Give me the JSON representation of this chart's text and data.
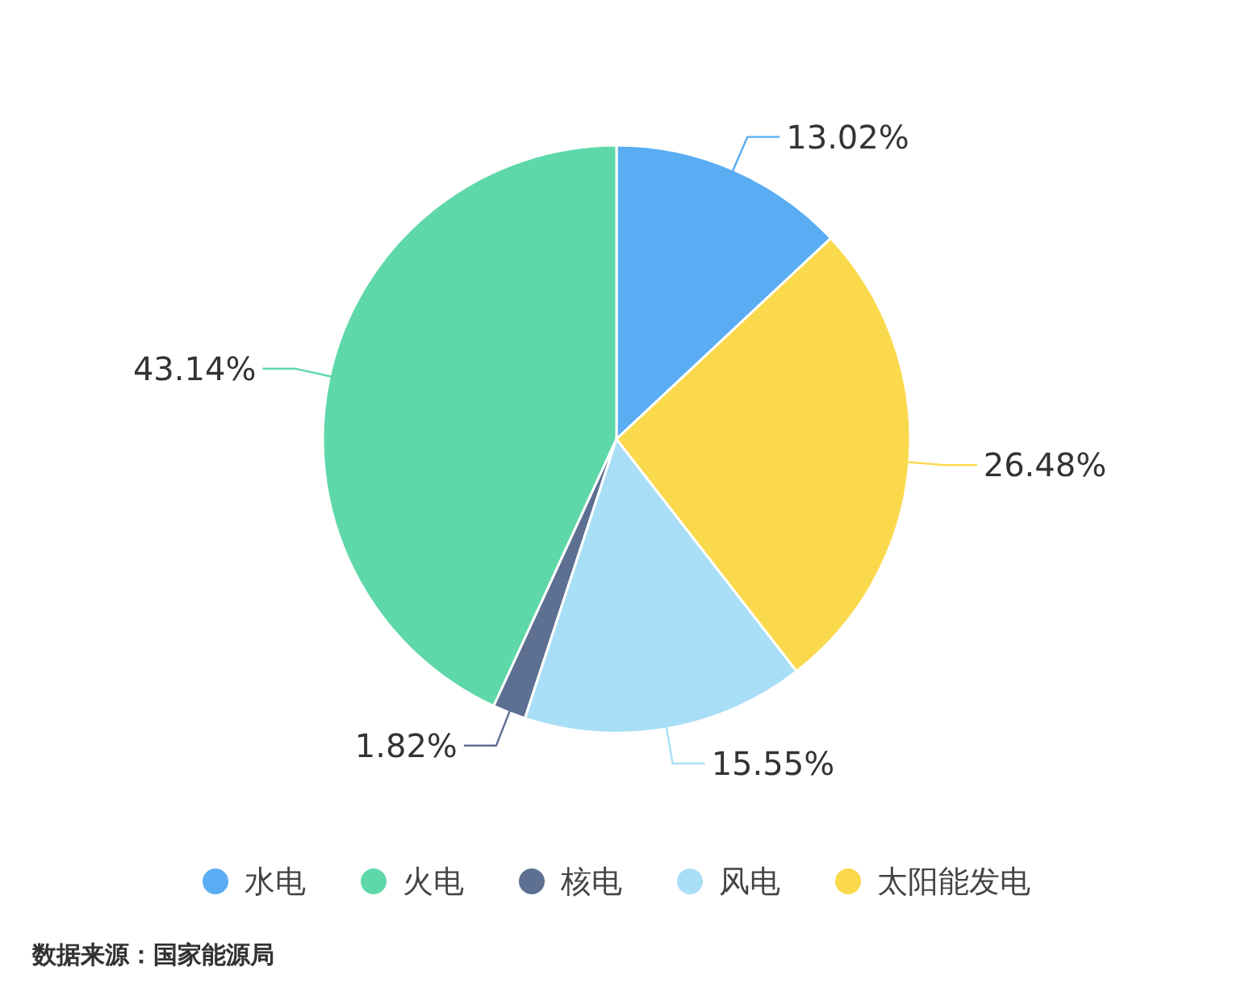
{
  "chart_data": {
    "type": "pie",
    "categories": [
      "水电",
      "火电",
      "核电",
      "风电",
      "太阳能发电"
    ],
    "values": [
      13.02,
      43.14,
      1.82,
      15.55,
      26.48
    ],
    "colors": [
      "#5aadf2",
      "#5fd8a9",
      "#5d7092",
      "#a9def7",
      "#fbd94c"
    ],
    "value_labels": [
      "13.02%",
      "43.14%",
      "1.82%",
      "15.55%",
      "26.48%"
    ],
    "legend": "bottom",
    "annotations": [
      "数据来源：国家能源局"
    ]
  }
}
